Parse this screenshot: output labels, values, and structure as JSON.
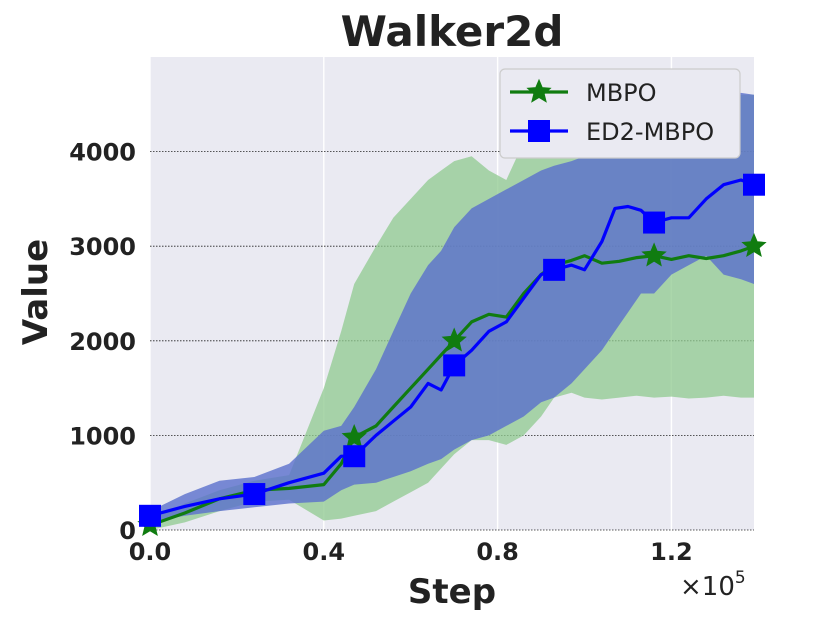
{
  "chart_data": {
    "type": "line",
    "title": "Walker2d",
    "xlabel": "Step",
    "ylabel": "Value",
    "x_offset_label": "×10",
    "x_offset_exponent": "5",
    "xlim": [
      0,
      1.39
    ],
    "ylim": [
      0,
      5000
    ],
    "x_ticks": [
      0.0,
      0.4,
      0.8,
      1.2
    ],
    "x_tick_labels": [
      "0.0",
      "0.4",
      "0.8",
      "1.2"
    ],
    "y_ticks": [
      0,
      1000,
      2000,
      3000,
      4000
    ],
    "y_tick_labels": [
      "0",
      "1000",
      "2000",
      "3000",
      "4000"
    ],
    "grid": true,
    "legend_position": "top-right",
    "background_color": "#eaeaf2",
    "series": [
      {
        "name": "MBPO",
        "color": "#107c10",
        "band_color": "#8fc98f",
        "marker": "star",
        "x": [
          0.0,
          0.08,
          0.16,
          0.24,
          0.32,
          0.4,
          0.44,
          0.47,
          0.52,
          0.56,
          0.6,
          0.64,
          0.67,
          0.7,
          0.74,
          0.78,
          0.82,
          0.86,
          0.9,
          0.93,
          0.97,
          1.0,
          1.04,
          1.08,
          1.12,
          1.16,
          1.2,
          1.24,
          1.28,
          1.32,
          1.36,
          1.39
        ],
        "y": [
          50,
          180,
          330,
          420,
          440,
          480,
          700,
          980,
          1100,
          1300,
          1500,
          1700,
          1850,
          2000,
          2200,
          2280,
          2250,
          2500,
          2700,
          2800,
          2850,
          2900,
          2820,
          2840,
          2880,
          2900,
          2860,
          2900,
          2870,
          2900,
          2950,
          3000
        ],
        "upper": [
          100,
          280,
          420,
          520,
          580,
          1500,
          2100,
          2600,
          3000,
          3300,
          3500,
          3700,
          3800,
          3900,
          3950,
          3800,
          3700,
          4100,
          4400,
          4500,
          4600,
          4700,
          4650,
          4600,
          4620,
          4580,
          4550,
          4580,
          4560,
          4580,
          4600,
          4600
        ],
        "lower": [
          0,
          80,
          200,
          300,
          320,
          100,
          120,
          150,
          200,
          300,
          400,
          500,
          650,
          800,
          950,
          950,
          900,
          1000,
          1200,
          1400,
          1450,
          1400,
          1380,
          1400,
          1420,
          1400,
          1410,
          1390,
          1400,
          1420,
          1400,
          1400
        ],
        "marker_x": [
          0.0,
          0.47,
          0.7,
          1.16,
          1.39
        ],
        "marker_y": [
          50,
          980,
          2000,
          2900,
          3000
        ]
      },
      {
        "name": "ED2-MBPO",
        "color": "#0000ff",
        "band_color": "#5a6fcc",
        "marker": "square",
        "x": [
          0.0,
          0.08,
          0.16,
          0.24,
          0.32,
          0.4,
          0.44,
          0.47,
          0.52,
          0.56,
          0.6,
          0.64,
          0.67,
          0.7,
          0.74,
          0.78,
          0.82,
          0.86,
          0.9,
          0.93,
          0.97,
          1.0,
          1.04,
          1.07,
          1.1,
          1.13,
          1.16,
          1.2,
          1.24,
          1.28,
          1.32,
          1.36,
          1.39
        ],
        "y": [
          150,
          250,
          330,
          380,
          500,
          600,
          780,
          780,
          1000,
          1150,
          1300,
          1550,
          1480,
          1740,
          1900,
          2100,
          2200,
          2450,
          2700,
          2750,
          2800,
          2750,
          3050,
          3400,
          3420,
          3380,
          3250,
          3300,
          3300,
          3500,
          3650,
          3700,
          3650
        ],
        "upper": [
          200,
          380,
          520,
          560,
          700,
          1050,
          1100,
          1300,
          1700,
          2100,
          2500,
          2800,
          2950,
          3200,
          3400,
          3500,
          3600,
          3700,
          3800,
          3850,
          3900,
          3950,
          4000,
          4150,
          4250,
          4300,
          4350,
          4400,
          4500,
          4550,
          4600,
          4620,
          4600
        ],
        "lower": [
          80,
          150,
          200,
          240,
          280,
          300,
          420,
          480,
          500,
          560,
          620,
          700,
          750,
          850,
          950,
          1000,
          1100,
          1200,
          1350,
          1400,
          1550,
          1700,
          1900,
          2100,
          2300,
          2500,
          2500,
          2700,
          2800,
          2900,
          2700,
          2650,
          2600
        ],
        "marker_x": [
          0.0,
          0.24,
          0.47,
          0.7,
          0.93,
          1.16,
          1.39
        ],
        "marker_y": [
          150,
          380,
          780,
          1740,
          2750,
          3250,
          3650
        ]
      }
    ]
  }
}
